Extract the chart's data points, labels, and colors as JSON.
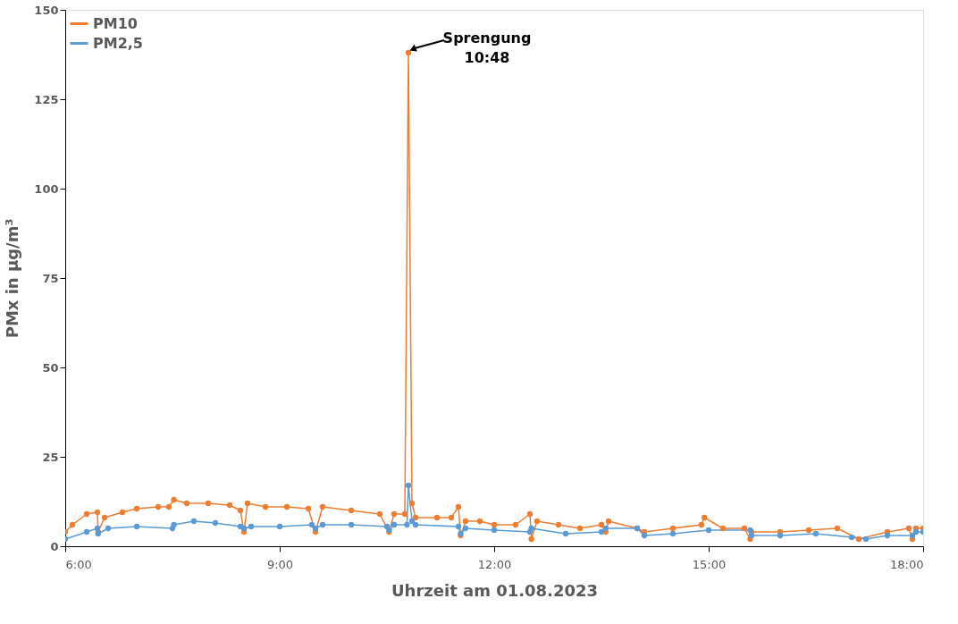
{
  "chart_data": {
    "type": "line",
    "xlabel": "Uhrzeit am 01.08.2023",
    "ylabel": "PMx in µg/m³",
    "xlim": [
      6,
      18
    ],
    "xticks": [
      {
        "value": 6,
        "label": "6:00"
      },
      {
        "value": 9,
        "label": "9:00"
      },
      {
        "value": 12,
        "label": "12:00"
      },
      {
        "value": 15,
        "label": "15:00"
      },
      {
        "value": 18,
        "label": "18:00"
      }
    ],
    "ylim": [
      0,
      150
    ],
    "yticks": [
      0,
      25,
      50,
      75,
      100,
      125,
      150
    ],
    "grid": false,
    "legend": "top left",
    "marker": "circle",
    "line_style": "solid",
    "annotations": [
      {
        "text": "Sprengung\n10:48",
        "x": 10.8,
        "y": 138
      }
    ],
    "series": [
      {
        "name": "PM10",
        "color": "#ed7d31",
        "x": [
          6.0,
          6.1,
          6.3,
          6.45,
          6.46,
          6.55,
          6.8,
          7.0,
          7.3,
          7.45,
          7.52,
          7.7,
          8.0,
          8.3,
          8.45,
          8.5,
          8.55,
          8.8,
          9.1,
          9.4,
          9.5,
          9.6,
          10.0,
          10.4,
          10.53,
          10.6,
          10.75,
          10.8,
          10.85,
          10.9,
          11.2,
          11.4,
          11.5,
          11.53,
          11.6,
          11.8,
          12.0,
          12.3,
          12.5,
          12.52,
          12.6,
          12.9,
          13.2,
          13.5,
          13.56,
          13.6,
          14.0,
          14.1,
          14.5,
          14.9,
          14.94,
          15.2,
          15.5,
          15.58,
          15.6,
          16.0,
          16.4,
          16.8,
          17.1,
          17.5,
          17.8,
          17.85,
          17.9,
          18.0
        ],
        "values": [
          4,
          6,
          9,
          9.5,
          4,
          8,
          9.5,
          10.5,
          11,
          11,
          13,
          12,
          12,
          11.5,
          10,
          4,
          12,
          11,
          11,
          10.5,
          4,
          11,
          10,
          9,
          4,
          9,
          9,
          138,
          12,
          8,
          8,
          8,
          11,
          3,
          7,
          7,
          6,
          6,
          9,
          2,
          7,
          6,
          5,
          6,
          4,
          7,
          5,
          4,
          5,
          6,
          8,
          5,
          5,
          2,
          4,
          4,
          4.5,
          5,
          2,
          4,
          5,
          2,
          5,
          5
        ]
      },
      {
        "name": "PM2,5",
        "color": "#5b9bd5",
        "x": [
          6.0,
          6.3,
          6.45,
          6.46,
          6.6,
          7.0,
          7.5,
          7.52,
          7.8,
          8.1,
          8.45,
          8.5,
          8.6,
          9.0,
          9.45,
          9.5,
          9.6,
          10.0,
          10.5,
          10.53,
          10.6,
          10.78,
          10.8,
          10.85,
          10.9,
          11.5,
          11.53,
          11.6,
          12.0,
          12.5,
          12.52,
          13.0,
          13.5,
          13.56,
          14.0,
          14.1,
          14.5,
          15.0,
          15.58,
          15.6,
          16.0,
          16.5,
          17.0,
          17.2,
          17.5,
          17.85,
          17.9,
          18.0
        ],
        "values": [
          2,
          4,
          5,
          3.5,
          5,
          5.5,
          5,
          6,
          7,
          6.5,
          5.5,
          5,
          5.5,
          5.5,
          6,
          5,
          6,
          6,
          5.5,
          4.5,
          6,
          6,
          17,
          7,
          6,
          5.5,
          3.5,
          5,
          4.5,
          4,
          5,
          3.5,
          4,
          5,
          5,
          3,
          3.5,
          4.5,
          4.5,
          3,
          3,
          3.5,
          2.5,
          2,
          3,
          3,
          4,
          4
        ]
      }
    ]
  }
}
